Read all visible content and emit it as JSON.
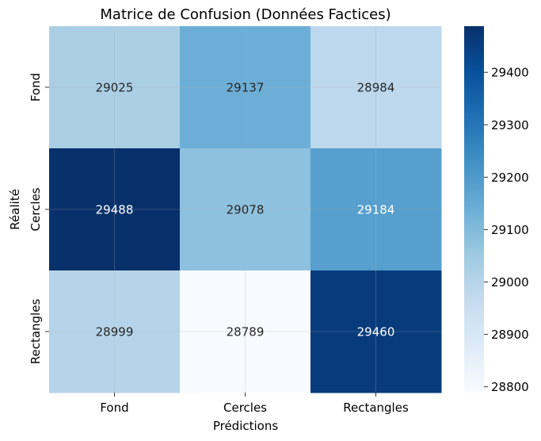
{
  "chart_data": {
    "type": "heatmap",
    "title": "Matrice de Confusion (Données Factices)",
    "xlabel": "Prédictions",
    "ylabel": "Réalité",
    "x_categories": [
      "Fond",
      "Cercles",
      "Rectangles"
    ],
    "y_categories": [
      "Fond",
      "Cercles",
      "Rectangles"
    ],
    "values": [
      [
        29025,
        29137,
        28984
      ],
      [
        29488,
        29078,
        29184
      ],
      [
        28999,
        28789,
        29460
      ]
    ],
    "colorbar": {
      "ticks": [
        "28800",
        "28900",
        "29000",
        "29100",
        "29200",
        "29300",
        "29400"
      ],
      "range": [
        28789,
        29488
      ]
    },
    "colormap": "Blues",
    "grid": true,
    "colors": {
      "low": "#f7fbff",
      "high": "#08306b",
      "text_dark": "#262626",
      "text_light": "#ffffff"
    }
  }
}
